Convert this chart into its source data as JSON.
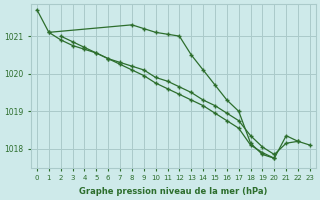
{
  "hours": [
    0,
    1,
    2,
    3,
    4,
    5,
    6,
    7,
    8,
    9,
    10,
    11,
    12,
    13,
    14,
    15,
    16,
    17,
    18,
    19,
    20,
    21,
    22,
    23
  ],
  "line1": [
    1021.7,
    1021.1,
    null,
    null,
    null,
    null,
    null,
    null,
    1021.3,
    1021.2,
    1021.1,
    1021.05,
    1021.0,
    1020.5,
    1020.1,
    1019.7,
    1019.3,
    1019.0,
    1018.15,
    1017.85,
    1017.75,
    1018.35,
    1018.2,
    null
  ],
  "line2": [
    null,
    1021.1,
    1020.9,
    1020.75,
    1020.65,
    1020.55,
    1020.4,
    1020.3,
    1020.2,
    1020.1,
    1019.9,
    1019.8,
    1019.65,
    1019.5,
    1019.3,
    1019.15,
    1018.95,
    1018.75,
    1018.35,
    1018.05,
    1017.85,
    1018.15,
    1018.2,
    1018.1
  ],
  "line3": [
    null,
    null,
    1021.0,
    1020.85,
    1020.7,
    1020.55,
    1020.4,
    1020.25,
    1020.1,
    1019.95,
    1019.75,
    1019.6,
    1019.45,
    1019.3,
    1019.15,
    1018.95,
    1018.75,
    1018.55,
    1018.1,
    1017.9,
    1017.75,
    null,
    null,
    null
  ],
  "bg_color": "#ceeaea",
  "grid_color": "#aacaca",
  "line_color": "#2d6e2d",
  "marker": "+",
  "xlabel": "Graphe pression niveau de la mer (hPa)",
  "ylim_min": 1017.5,
  "ylim_max": 1021.85,
  "yticks": [
    1018,
    1019,
    1020,
    1021
  ],
  "xticks": [
    0,
    1,
    2,
    3,
    4,
    5,
    6,
    7,
    8,
    9,
    10,
    11,
    12,
    13,
    14,
    15,
    16,
    17,
    18,
    19,
    20,
    21,
    22,
    23
  ]
}
